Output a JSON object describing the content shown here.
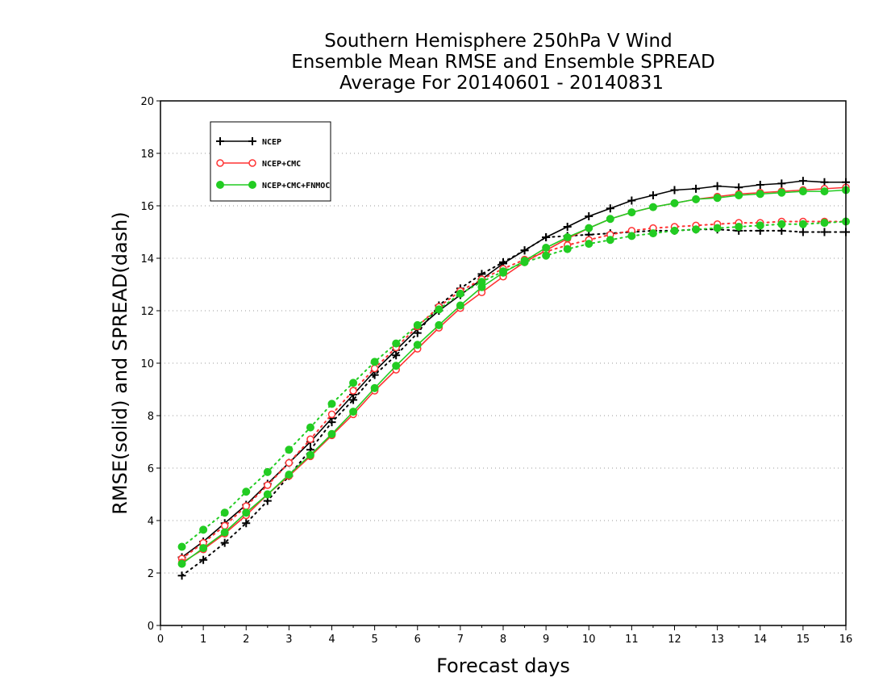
{
  "chart_data": {
    "type": "line",
    "title": [
      "Southern Hemisphere 250hPa V Wind",
      "Ensemble Mean RMSE and Ensemble SPREAD",
      "Average For 20140601 - 20140831"
    ],
    "xlabel": "Forecast days",
    "ylabel": "RMSE(solid) and SPREAD(dash)",
    "xlim": [
      0,
      16
    ],
    "ylim": [
      0,
      20
    ],
    "xticks": [
      0,
      1,
      2,
      3,
      4,
      5,
      6,
      7,
      8,
      9,
      10,
      11,
      12,
      13,
      14,
      15,
      16
    ],
    "yticks": [
      0,
      2,
      4,
      6,
      8,
      10,
      12,
      14,
      16,
      18,
      20
    ],
    "grid": true,
    "legend_position": "top-left",
    "x": [
      0.5,
      1,
      1.5,
      2,
      2.5,
      3,
      3.5,
      4,
      4.5,
      5,
      5.5,
      6,
      6.5,
      7,
      7.5,
      8,
      8.5,
      9,
      9.5,
      10,
      10.5,
      11,
      11.5,
      12,
      12.5,
      13,
      13.5,
      14,
      14.5,
      15,
      15.5,
      16
    ],
    "series": [
      {
        "name": "NCEP",
        "color": "#000000",
        "marker": "plus",
        "rmse": [
          2.6,
          3.2,
          3.9,
          4.6,
          5.4,
          6.2,
          7.0,
          7.9,
          8.8,
          9.7,
          10.5,
          11.3,
          12.0,
          12.6,
          13.2,
          13.8,
          14.3,
          14.8,
          15.2,
          15.6,
          15.9,
          16.2,
          16.4,
          16.6,
          16.65,
          16.75,
          16.7,
          16.8,
          16.85,
          16.95,
          16.9,
          16.9
        ],
        "spread": [
          1.9,
          2.5,
          3.15,
          3.9,
          4.75,
          5.7,
          6.7,
          7.75,
          8.6,
          9.55,
          10.3,
          11.15,
          12.2,
          12.85,
          13.4,
          13.85,
          14.3,
          14.8,
          14.85,
          14.9,
          14.95,
          15.0,
          15.05,
          15.05,
          15.1,
          15.1,
          15.05,
          15.05,
          15.05,
          15.0,
          15.0,
          15.0
        ]
      },
      {
        "name": "NCEP+CMC",
        "color": "#ff3333",
        "marker": "circle-open",
        "rmse": [
          2.4,
          2.9,
          3.5,
          4.2,
          5.0,
          5.7,
          6.45,
          7.25,
          8.05,
          8.95,
          9.75,
          10.55,
          11.35,
          12.1,
          12.7,
          13.3,
          13.85,
          14.3,
          14.75,
          15.15,
          15.5,
          15.75,
          15.95,
          16.1,
          16.25,
          16.35,
          16.45,
          16.5,
          16.55,
          16.6,
          16.65,
          16.7
        ],
        "spread": [
          2.55,
          3.15,
          3.8,
          4.55,
          5.35,
          6.2,
          7.1,
          8.05,
          8.95,
          9.8,
          10.6,
          11.4,
          12.15,
          12.75,
          13.2,
          13.6,
          13.95,
          14.25,
          14.5,
          14.7,
          14.9,
          15.05,
          15.15,
          15.2,
          15.25,
          15.3,
          15.35,
          15.35,
          15.4,
          15.4,
          15.4,
          15.4
        ]
      },
      {
        "name": "NCEP+CMC+FNMOC",
        "color": "#22cc22",
        "marker": "circle-filled",
        "rmse": [
          2.35,
          2.95,
          3.55,
          4.3,
          5.0,
          5.75,
          6.5,
          7.3,
          8.15,
          9.05,
          9.9,
          10.7,
          11.45,
          12.2,
          12.9,
          13.45,
          13.9,
          14.4,
          14.8,
          15.15,
          15.5,
          15.75,
          15.95,
          16.1,
          16.25,
          16.3,
          16.4,
          16.45,
          16.5,
          16.55,
          16.55,
          16.6
        ],
        "spread": [
          3.0,
          3.65,
          4.3,
          5.1,
          5.85,
          6.7,
          7.55,
          8.45,
          9.25,
          10.05,
          10.75,
          11.45,
          12.05,
          12.65,
          13.1,
          13.5,
          13.85,
          14.1,
          14.35,
          14.55,
          14.7,
          14.85,
          14.95,
          15.05,
          15.1,
          15.15,
          15.2,
          15.25,
          15.3,
          15.3,
          15.35,
          15.4
        ]
      }
    ]
  }
}
